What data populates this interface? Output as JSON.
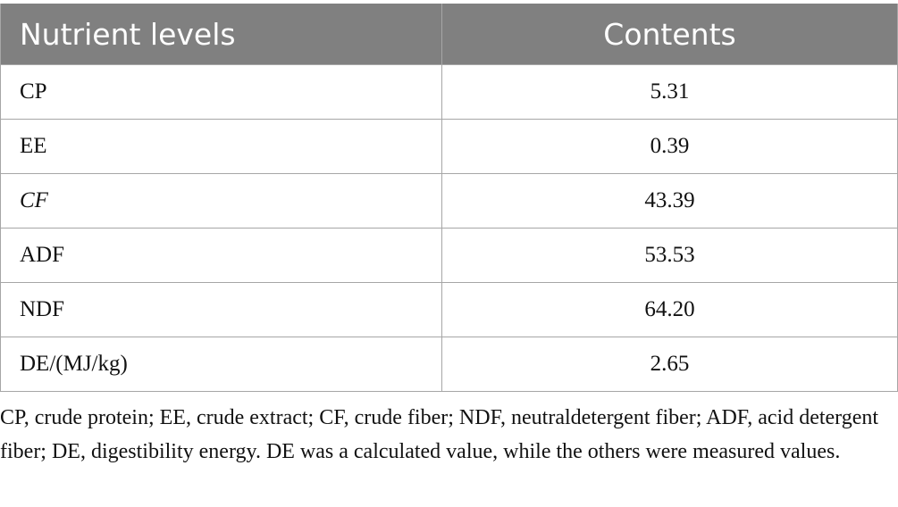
{
  "table": {
    "headers": [
      "Nutrient levels",
      "Contents"
    ],
    "rows": [
      {
        "name": "CP",
        "value": "5.31",
        "italic": false
      },
      {
        "name": "EE",
        "value": "0.39",
        "italic": false
      },
      {
        "name": "CF",
        "value": "43.39",
        "italic": true
      },
      {
        "name": "ADF",
        "value": "53.53",
        "italic": false
      },
      {
        "name": "NDF",
        "value": "64.20",
        "italic": false
      },
      {
        "name": "DE/(MJ/kg)",
        "value": "2.65",
        "italic": false
      }
    ]
  },
  "footnote": "CP, crude protein; EE, crude extract; CF, crude fiber; NDF, neutraldetergent fiber; ADF, acid detergent fiber; DE, digestibility energy. DE was a calculated value, while the others were measured values."
}
